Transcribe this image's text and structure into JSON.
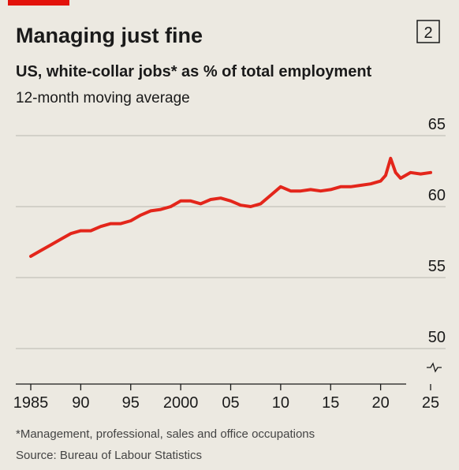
{
  "badge": "2",
  "chart_data": {
    "type": "line",
    "title": "Managing just fine",
    "subtitle": "US, white-collar jobs* as % of total employment",
    "note": "12-month moving average",
    "footnote": "*Management, professional, sales and office occupations",
    "source": "Source: Bureau of Labour Statistics",
    "color": "#e3261b",
    "x": [
      1985,
      1986,
      1987,
      1988,
      1989,
      1990,
      1991,
      1992,
      1993,
      1994,
      1995,
      1996,
      1997,
      1998,
      1999,
      2000,
      2001,
      2002,
      2003,
      2004,
      2005,
      2006,
      2007,
      2008,
      2009,
      2010,
      2011,
      2012,
      2013,
      2014,
      2015,
      2016,
      2017,
      2018,
      2019,
      2020,
      2020.5,
      2021,
      2021.5,
      2022,
      2022.5,
      2023,
      2024,
      2025
    ],
    "values": [
      56.5,
      56.9,
      57.3,
      57.7,
      58.1,
      58.3,
      58.3,
      58.6,
      58.8,
      58.8,
      59.0,
      59.4,
      59.7,
      59.8,
      60.0,
      60.4,
      60.4,
      60.2,
      60.5,
      60.6,
      60.4,
      60.1,
      60.0,
      60.2,
      60.8,
      61.4,
      61.1,
      61.1,
      61.2,
      61.1,
      61.2,
      61.4,
      61.4,
      61.5,
      61.6,
      61.8,
      62.2,
      63.4,
      62.4,
      62.0,
      62.2,
      62.4,
      62.3,
      62.4
    ],
    "xlim": [
      1983.5,
      2026.5
    ],
    "ylim": [
      47.5,
      65
    ],
    "xticks": [
      1985,
      {
        "value": 1990,
        "label": "90"
      },
      {
        "value": 1995,
        "label": "95"
      },
      2000,
      {
        "value": 2005,
        "label": "05"
      },
      {
        "value": 2010,
        "label": "10"
      },
      {
        "value": 2015,
        "label": "15"
      },
      {
        "value": 2020,
        "label": "20"
      },
      {
        "value": 2025,
        "label": "25"
      }
    ],
    "yticks": [
      50,
      55,
      60,
      65
    ],
    "grid": true
  }
}
